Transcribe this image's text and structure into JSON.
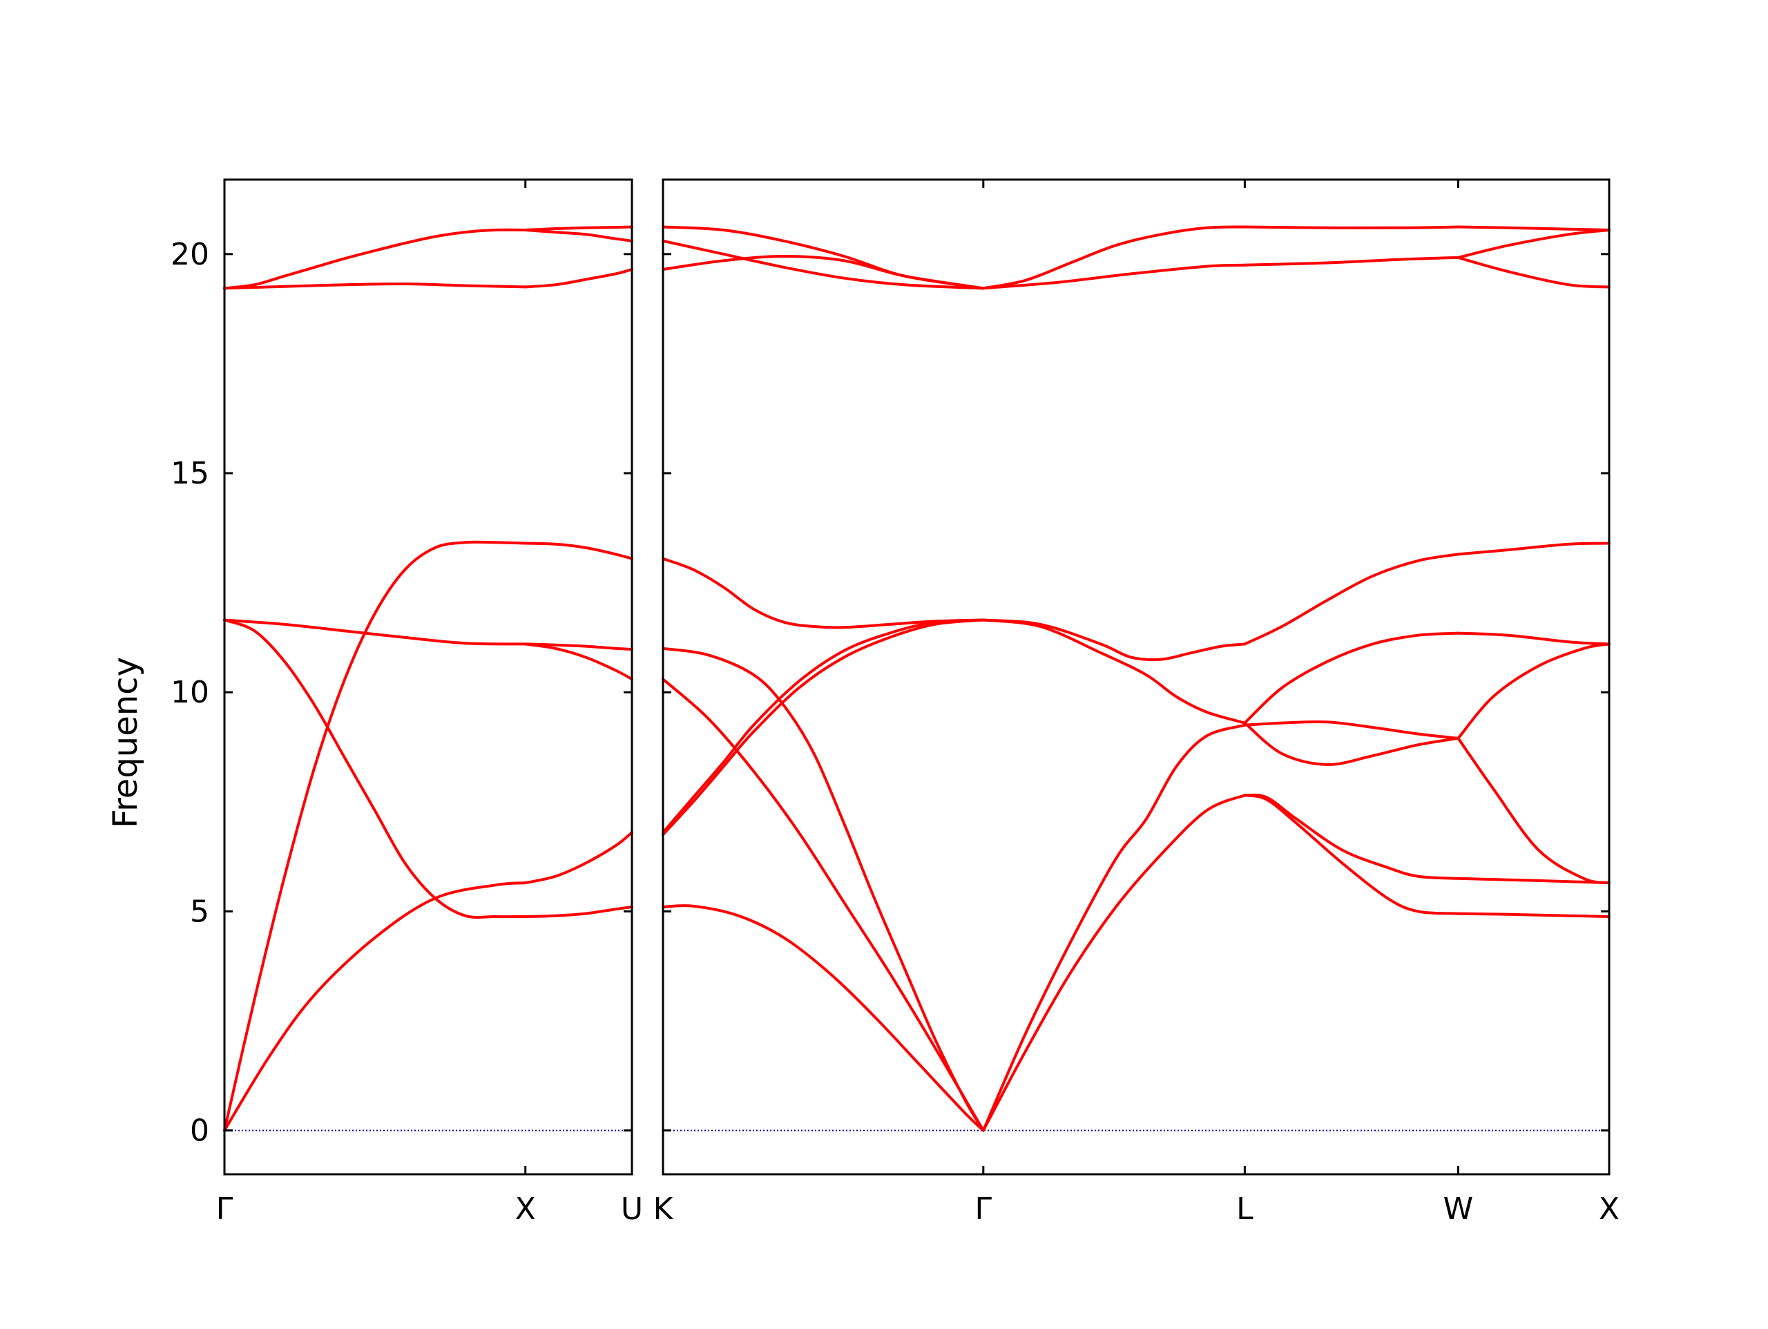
{
  "chart_data": {
    "type": "line",
    "title": "",
    "ylabel": "Frequency",
    "ylim": [
      -1.0,
      21.7
    ],
    "yticks": [
      0,
      5,
      10,
      15,
      20
    ],
    "grid": false,
    "colors": {
      "band": "#ff0000",
      "zero_line": "#0000aa",
      "axes": "#000000"
    },
    "panels": [
      {
        "id": "gamma-x-u",
        "x_ticks": [
          {
            "pos": 0.0,
            "label": "Γ"
          },
          {
            "pos": 1.0,
            "label": "X"
          },
          {
            "pos": 1.354,
            "label": "U"
          }
        ],
        "xlim": [
          0.0,
          1.354
        ],
        "series": [
          {
            "x": [
              0,
              0.15,
              0.3,
              0.5,
              0.7,
              0.9,
              1.0
            ],
            "y": [
              0,
              1.7,
              3.1,
              4.4,
              5.3,
              5.6,
              5.65
            ]
          },
          {
            "x": [
              1.0,
              1.1,
              1.2,
              1.3,
              1.354
            ],
            "y": [
              5.65,
              5.8,
              6.1,
              6.5,
              6.8
            ]
          },
          {
            "x": [
              0,
              0.1,
              0.2,
              0.3,
              0.4,
              0.5,
              0.6,
              0.7,
              0.8,
              0.9,
              1.0
            ],
            "y": [
              0,
              3.0,
              5.8,
              8.3,
              10.3,
              11.8,
              12.8,
              13.3,
              13.42,
              13.42,
              13.4
            ]
          },
          {
            "x": [
              1.0,
              1.1,
              1.2,
              1.3,
              1.354
            ],
            "y": [
              13.4,
              13.38,
              13.3,
              13.15,
              13.05
            ]
          },
          {
            "x": [
              0,
              0.1,
              0.2,
              0.3,
              0.4,
              0.5,
              0.6,
              0.7,
              0.8,
              0.9,
              1.0
            ],
            "y": [
              11.65,
              11.4,
              10.7,
              9.7,
              8.5,
              7.3,
              6.1,
              5.3,
              4.9,
              4.88,
              4.88
            ]
          },
          {
            "x": [
              1.0,
              1.1,
              1.2,
              1.3,
              1.354
            ],
            "y": [
              4.88,
              4.9,
              4.95,
              5.05,
              5.1
            ]
          },
          {
            "x": [
              0,
              0.2,
              0.4,
              0.6,
              0.8,
              1.0
            ],
            "y": [
              11.65,
              11.55,
              11.4,
              11.25,
              11.12,
              11.1
            ]
          },
          {
            "x": [
              1.0,
              1.1,
              1.2,
              1.3,
              1.354
            ],
            "y": [
              11.1,
              11.08,
              11.05,
              11.0,
              10.98
            ]
          },
          {
            "x": [
              1.0,
              1.1,
              1.2,
              1.3,
              1.354
            ],
            "y": [
              11.1,
              11.0,
              10.8,
              10.5,
              10.3
            ]
          },
          {
            "x": [
              0,
              0.2,
              0.4,
              0.6,
              0.8,
              1.0
            ],
            "y": [
              19.22,
              19.26,
              19.3,
              19.32,
              19.28,
              19.25
            ]
          },
          {
            "x": [
              1.0,
              1.1,
              1.2,
              1.3,
              1.354
            ],
            "y": [
              19.25,
              19.3,
              19.42,
              19.55,
              19.65
            ]
          },
          {
            "x": [
              0,
              0.1,
              0.2,
              0.3,
              0.4,
              0.5,
              0.6,
              0.7,
              0.8,
              0.9,
              1.0
            ],
            "y": [
              19.22,
              19.3,
              19.5,
              19.7,
              19.9,
              20.08,
              20.25,
              20.4,
              20.5,
              20.55,
              20.55
            ]
          },
          {
            "x": [
              1.0,
              1.1,
              1.2,
              1.3,
              1.354
            ],
            "y": [
              20.55,
              20.5,
              20.45,
              20.35,
              20.3
            ]
          },
          {
            "x": [
              1.0,
              1.1,
              1.2,
              1.3,
              1.354
            ],
            "y": [
              20.55,
              20.58,
              20.6,
              20.61,
              20.62
            ]
          }
        ]
      },
      {
        "id": "k-gamma-l-w-x",
        "x_ticks": [
          {
            "pos": 0.0,
            "label": "K"
          },
          {
            "pos": 1.061,
            "label": "Γ"
          },
          {
            "pos": 1.927,
            "label": "L"
          },
          {
            "pos": 2.634,
            "label": "W"
          },
          {
            "pos": 3.134,
            "label": "X"
          }
        ],
        "xlim": [
          0.0,
          3.134
        ],
        "series": [
          {
            "x": [
              0,
              0.1,
              0.25,
              0.4,
              0.55,
              0.7,
              0.85,
              1.0,
              1.061
            ],
            "y": [
              5.1,
              5.12,
              4.9,
              4.4,
              3.6,
              2.6,
              1.5,
              0.4,
              0
            ]
          },
          {
            "x": [
              0,
              0.15,
              0.3,
              0.45,
              0.6,
              0.75,
              0.9,
              1.061
            ],
            "y": [
              10.3,
              9.4,
              8.2,
              6.8,
              5.2,
              3.6,
              1.9,
              0
            ]
          },
          {
            "x": [
              0,
              0.15,
              0.3,
              0.4,
              0.5,
              0.6,
              0.7,
              0.8,
              0.9,
              1.0,
              1.061
            ],
            "y": [
              11.0,
              10.85,
              10.4,
              9.7,
              8.6,
              7.0,
              5.3,
              3.7,
              2.1,
              0.7,
              0
            ]
          },
          {
            "x": [
              0,
              0.1,
              0.2,
              0.3,
              0.45,
              0.6,
              0.75,
              0.9,
              1.061
            ],
            "y": [
              6.75,
              7.5,
              8.3,
              9.1,
              10.1,
              10.8,
              11.25,
              11.55,
              11.65
            ]
          },
          {
            "x": [
              0,
              0.1,
              0.2,
              0.3,
              0.45,
              0.6,
              0.75,
              0.9,
              1.061
            ],
            "y": [
              6.8,
              7.6,
              8.4,
              9.25,
              10.25,
              10.95,
              11.35,
              11.6,
              11.65
            ]
          },
          {
            "x": [
              0,
              0.1,
              0.2,
              0.3,
              0.4,
              0.5,
              0.6,
              0.75,
              0.9,
              1.061
            ],
            "y": [
              13.05,
              12.8,
              12.4,
              11.9,
              11.6,
              11.5,
              11.48,
              11.55,
              11.62,
              11.65
            ]
          },
          {
            "x": [
              0,
              0.2,
              0.4,
              0.6,
              0.8,
              1.061
            ],
            "y": [
              19.65,
              19.85,
              19.95,
              19.85,
              19.5,
              19.22
            ]
          },
          {
            "x": [
              0,
              0.2,
              0.4,
              0.6,
              0.8,
              1.061
            ],
            "y": [
              20.3,
              20.0,
              19.7,
              19.45,
              19.3,
              19.22
            ]
          },
          {
            "x": [
              0,
              0.2,
              0.4,
              0.6,
              0.8,
              1.061
            ],
            "y": [
              20.62,
              20.55,
              20.3,
              19.95,
              19.5,
              19.22
            ]
          },
          {
            "x": [
              1.061,
              1.2,
              1.35,
              1.5,
              1.6,
              1.7,
              1.8,
              1.927
            ],
            "y": [
              0,
              2.2,
              4.3,
              6.2,
              7.1,
              8.3,
              9.0,
              9.25
            ]
          },
          {
            "x": [
              1.061,
              1.2,
              1.35,
              1.5,
              1.65,
              1.8,
              1.927
            ],
            "y": [
              0,
              1.8,
              3.6,
              5.1,
              6.3,
              7.3,
              7.65
            ]
          },
          {
            "x": [
              1.061,
              1.25,
              1.45,
              1.6,
              1.7,
              1.8,
              1.927
            ],
            "y": [
              11.65,
              11.5,
              10.9,
              10.4,
              9.9,
              9.55,
              9.3
            ]
          },
          {
            "x": [
              1.061,
              1.25,
              1.45,
              1.55,
              1.65,
              1.75,
              1.85,
              1.927
            ],
            "y": [
              11.65,
              11.55,
              11.1,
              10.8,
              10.75,
              10.9,
              11.05,
              11.1
            ]
          },
          {
            "x": [
              1.061,
              1.3,
              1.55,
              1.8,
              1.927
            ],
            "y": [
              19.22,
              19.35,
              19.55,
              19.72,
              19.75
            ]
          },
          {
            "x": [
              1.061,
              1.2,
              1.35,
              1.5,
              1.65,
              1.8,
              1.927
            ],
            "y": [
              19.22,
              19.4,
              19.8,
              20.2,
              20.45,
              20.6,
              20.62
            ]
          },
          {
            "x": [
              1.927,
              2.05,
              2.2,
              2.35,
              2.5,
              2.634
            ],
            "y": [
              9.3,
              8.6,
              8.35,
              8.55,
              8.8,
              8.95
            ]
          },
          {
            "x": [
              1.927,
              2.05,
              2.2,
              2.35,
              2.5,
              2.634
            ],
            "y": [
              9.25,
              9.3,
              9.32,
              9.2,
              9.05,
              8.95
            ]
          },
          {
            "x": [
              1.927,
              2.05,
              2.2,
              2.35,
              2.5,
              2.634
            ],
            "y": [
              9.3,
              10.1,
              10.7,
              11.1,
              11.3,
              11.35
            ]
          },
          {
            "x": [
              1.927,
              2.05,
              2.2,
              2.35,
              2.5,
              2.634
            ],
            "y": [
              11.1,
              11.5,
              12.1,
              12.65,
              13.0,
              13.15
            ]
          },
          {
            "x": [
              1.927,
              2.0,
              2.1,
              2.25,
              2.4,
              2.5,
              2.634
            ],
            "y": [
              7.65,
              7.6,
              7.1,
              6.4,
              6.0,
              5.8,
              5.75
            ]
          },
          {
            "x": [
              1.927,
              2.0,
              2.1,
              2.25,
              2.4,
              2.5,
              2.634
            ],
            "y": [
              7.65,
              7.55,
              7.0,
              6.1,
              5.3,
              5.0,
              4.95
            ]
          },
          {
            "x": [
              1.927,
              2.2,
              2.45,
              2.634
            ],
            "y": [
              19.75,
              19.8,
              19.88,
              19.92
            ]
          },
          {
            "x": [
              1.927,
              2.2,
              2.45,
              2.634
            ],
            "y": [
              20.62,
              20.6,
              20.6,
              20.62
            ]
          },
          {
            "x": [
              2.634,
              2.8,
              3.0,
              3.134
            ],
            "y": [
              13.15,
              13.25,
              13.38,
              13.4
            ]
          },
          {
            "x": [
              2.634,
              2.8,
              3.0,
              3.134
            ],
            "y": [
              11.35,
              11.3,
              11.15,
              11.1
            ]
          },
          {
            "x": [
              2.634,
              2.75,
              2.9,
              3.05,
              3.134
            ],
            "y": [
              8.95,
              9.9,
              10.6,
              11.0,
              11.1
            ]
          },
          {
            "x": [
              2.634,
              2.75,
              2.9,
              3.05,
              3.134
            ],
            "y": [
              8.95,
              7.8,
              6.4,
              5.75,
              5.65
            ]
          },
          {
            "x": [
              2.634,
              2.8,
              3.0,
              3.134
            ],
            "y": [
              5.75,
              5.72,
              5.68,
              5.65
            ]
          },
          {
            "x": [
              2.634,
              2.8,
              3.0,
              3.134
            ],
            "y": [
              4.95,
              4.93,
              4.9,
              4.88
            ]
          },
          {
            "x": [
              2.634,
              2.8,
              3.0,
              3.134
            ],
            "y": [
              19.92,
              20.2,
              20.45,
              20.55
            ]
          },
          {
            "x": [
              2.634,
              2.8,
              3.0,
              3.134
            ],
            "y": [
              19.92,
              19.6,
              19.3,
              19.25
            ]
          },
          {
            "x": [
              2.634,
              2.8,
              3.0,
              3.134
            ],
            "y": [
              20.62,
              20.6,
              20.57,
              20.55
            ]
          }
        ]
      }
    ]
  }
}
